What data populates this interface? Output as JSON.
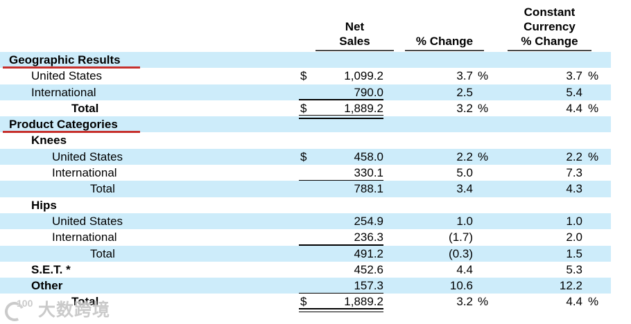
{
  "header": {
    "net": [
      "Net",
      "Sales"
    ],
    "chg": [
      "% Change"
    ],
    "cc": [
      "Constant",
      "Currency",
      "% Change"
    ]
  },
  "rows": [
    {
      "label": "Geographic Results",
      "indent": 0,
      "bold": true,
      "shaded": true,
      "section": true
    },
    {
      "label": "United States",
      "indent": 1,
      "dollar": "$",
      "net": "1,099.2",
      "chg": "3.7",
      "chg_pct": "%",
      "cc": "3.7",
      "cc_pct": "%"
    },
    {
      "label": "International",
      "indent": 1,
      "shaded": true,
      "net": "790.0",
      "chg": "2.5",
      "cc": "5.4",
      "net_underline": "single"
    },
    {
      "label": "Total",
      "indent": 3,
      "bold": true,
      "dollar": "$",
      "net": "1,889.2",
      "chg": "3.2",
      "chg_pct": "%",
      "cc": "4.4",
      "cc_pct": "%",
      "net_underline": "double"
    },
    {
      "label": "Product Categories",
      "indent": 0,
      "bold": true,
      "shaded": true,
      "section": true
    },
    {
      "label": "Knees",
      "indent": 1,
      "bold": true
    },
    {
      "label": "United States",
      "indent": 2,
      "shaded": true,
      "dollar": "$",
      "net": "458.0",
      "chg": "2.2",
      "chg_pct": "%",
      "cc": "2.2",
      "cc_pct": "%"
    },
    {
      "label": "International",
      "indent": 2,
      "net": "330.1",
      "chg": "5.0",
      "cc": "7.3",
      "net_underline": "single"
    },
    {
      "label": "Total",
      "indent": 4,
      "shaded": true,
      "net": "788.1",
      "chg": "3.4",
      "cc": "4.3"
    },
    {
      "label": "Hips",
      "indent": 1,
      "bold": true
    },
    {
      "label": "United States",
      "indent": 2,
      "shaded": true,
      "net": "254.9",
      "chg": "1.0",
      "cc": "1.0"
    },
    {
      "label": "International",
      "indent": 2,
      "net": "236.3",
      "chg": "(1.7)",
      "cc": "2.0",
      "net_underline": "single"
    },
    {
      "label": "Total",
      "indent": 4,
      "shaded": true,
      "net": "491.2",
      "chg": "(0.3)",
      "cc": "1.5"
    },
    {
      "label": "S.E.T. *",
      "indent": 1,
      "bold": true,
      "net": "452.6",
      "chg": "4.4",
      "cc": "5.3"
    },
    {
      "label": "Other",
      "indent": 1,
      "bold": true,
      "shaded": true,
      "net": "157.3",
      "chg": "10.6",
      "cc": "12.2",
      "net_underline": "single"
    },
    {
      "label": "Total",
      "indent": 3,
      "bold": true,
      "dollar": "$",
      "net": "1,889.2",
      "chg": "3.2",
      "chg_pct": "%",
      "cc": "4.4",
      "cc_pct": "%",
      "net_underline": "double"
    }
  ],
  "watermark": {
    "logo": "100",
    "text": "大数跨境"
  },
  "colors": {
    "row_shade": "#cdecfa",
    "section_underline_red": "#c6302c",
    "header_rule_gray": "#4a4a4a",
    "text": "#000000",
    "background": "#ffffff"
  }
}
